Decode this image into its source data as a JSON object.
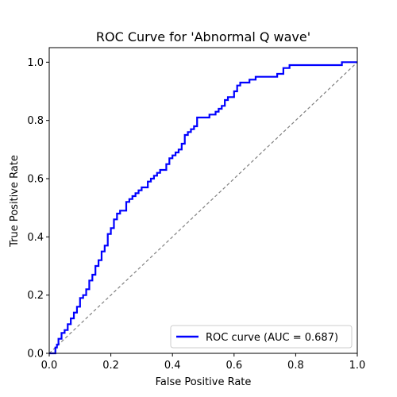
{
  "chart_data": {
    "type": "line",
    "title": "ROC Curve for 'Abnormal Q wave'",
    "xlabel": "False Positive Rate",
    "ylabel": "True Positive Rate",
    "xlim": [
      0.0,
      1.0
    ],
    "ylim": [
      0.0,
      1.05
    ],
    "xticks": [
      0.0,
      0.2,
      0.4,
      0.6,
      0.8,
      1.0
    ],
    "yticks": [
      0.0,
      0.2,
      0.4,
      0.6,
      0.8,
      1.0
    ],
    "xtick_labels": [
      "0.0",
      "0.2",
      "0.4",
      "0.6",
      "0.8",
      "1.0"
    ],
    "ytick_labels": [
      "0.0",
      "0.2",
      "0.4",
      "0.6",
      "0.8",
      "1.0"
    ],
    "grid": false,
    "legend_position": "lower-right",
    "series": [
      {
        "name": "ROC curve (AUC = 0.687)",
        "color": "#0000ff",
        "style": "solid",
        "x": [
          0.0,
          0.02,
          0.02,
          0.025,
          0.03,
          0.03,
          0.04,
          0.04,
          0.05,
          0.06,
          0.06,
          0.07,
          0.08,
          0.09,
          0.09,
          0.1,
          0.1,
          0.11,
          0.12,
          0.13,
          0.14,
          0.15,
          0.16,
          0.17,
          0.18,
          0.19,
          0.2,
          0.21,
          0.22,
          0.23,
          0.25,
          0.26,
          0.27,
          0.28,
          0.29,
          0.3,
          0.32,
          0.33,
          0.34,
          0.35,
          0.36,
          0.38,
          0.39,
          0.4,
          0.41,
          0.42,
          0.43,
          0.44,
          0.45,
          0.46,
          0.47,
          0.48,
          0.5,
          0.52,
          0.54,
          0.55,
          0.56,
          0.57,
          0.58,
          0.6,
          0.61,
          0.62,
          0.63,
          0.65,
          0.67,
          0.68,
          0.7,
          0.74,
          0.76,
          0.78,
          0.8,
          0.85,
          0.9,
          0.95,
          0.97,
          1.0
        ],
        "y": [
          0.0,
          0.01,
          0.02,
          0.03,
          0.04,
          0.05,
          0.06,
          0.07,
          0.08,
          0.09,
          0.1,
          0.12,
          0.14,
          0.15,
          0.16,
          0.17,
          0.19,
          0.2,
          0.22,
          0.25,
          0.27,
          0.3,
          0.32,
          0.35,
          0.37,
          0.41,
          0.43,
          0.46,
          0.48,
          0.49,
          0.52,
          0.53,
          0.54,
          0.55,
          0.56,
          0.57,
          0.59,
          0.6,
          0.61,
          0.62,
          0.63,
          0.65,
          0.67,
          0.68,
          0.69,
          0.7,
          0.72,
          0.75,
          0.76,
          0.77,
          0.78,
          0.81,
          0.81,
          0.82,
          0.83,
          0.84,
          0.85,
          0.87,
          0.88,
          0.9,
          0.92,
          0.93,
          0.93,
          0.94,
          0.95,
          0.95,
          0.95,
          0.96,
          0.98,
          0.99,
          0.99,
          0.99,
          0.99,
          1.0,
          1.0,
          1.0
        ]
      },
      {
        "name": "",
        "color": "#808080",
        "style": "dashed",
        "x": [
          0.0,
          1.0
        ],
        "y": [
          0.0,
          1.0
        ]
      }
    ]
  }
}
